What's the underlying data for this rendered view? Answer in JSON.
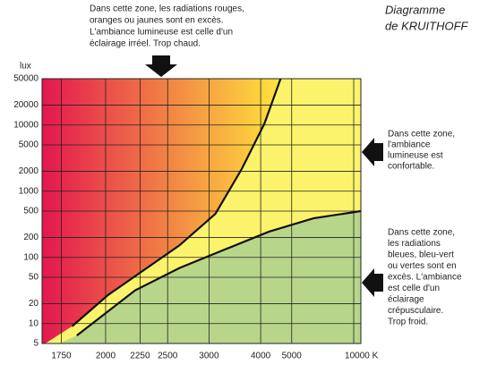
{
  "chart_data": {
    "type": "kruithof",
    "title": [
      "Diagramme",
      "de KRUITHOFF"
    ],
    "y_label": "lux",
    "x_scale": "reciprocal",
    "y_scale": "log",
    "xlim": [
      1660,
      11300
    ],
    "ylim": [
      5,
      50000
    ],
    "xticks": [
      1750,
      2000,
      2250,
      2500,
      3000,
      4000,
      5000,
      {
        "value": 10000,
        "label": "10000 K"
      }
    ],
    "yticks": [
      5,
      10,
      20,
      50,
      100,
      200,
      500,
      1000,
      2000,
      5000,
      10000,
      20000,
      50000
    ],
    "grid": true,
    "curves": [
      {
        "color": "#111111",
        "x": [
          1805,
          2016,
          2625,
          3096,
          3570,
          4100,
          4590
        ],
        "y": [
          9.1,
          27,
          152,
          454,
          2200,
          10500,
          50000
        ]
      },
      {
        "color": "#111111",
        "x": [
          1830,
          2210,
          2625,
          3236,
          4220,
          6060,
          11300
        ],
        "y": [
          6.6,
          31.7,
          69,
          130,
          244,
          389,
          500
        ]
      }
    ],
    "zone_colors": {
      "warm_left": "#e3174f",
      "warm_right": "#ffe43c",
      "comfort": "#fbf36c",
      "cool": "#b8d68a"
    },
    "annotations": [
      [
        "Dans cette zone, les radiations rouges,",
        "oranges ou jaunes sont en excès.",
        "L'ambiance lumineuse est celle d'un",
        "éclairage irréel. Trop chaud."
      ],
      [
        "Dans cette zone,",
        "l'ambiance",
        "lumineuse est",
        "confortable."
      ],
      [
        "Dans cette zone,",
        "les radiations",
        "bleues, bleu-vert",
        "ou vertes sont en",
        "excès. L'ambiance",
        "est celle d'un",
        "éclairage",
        "crépusculaire.",
        "Trop froid."
      ]
    ]
  }
}
